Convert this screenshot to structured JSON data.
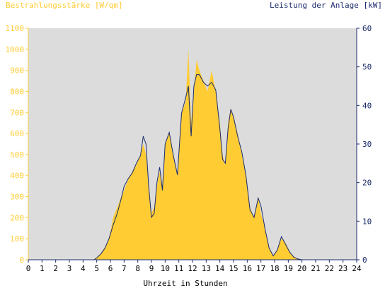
{
  "chart_data": {
    "type": "area",
    "title_left": "Bestrahlungsstärke [W/qm]",
    "title_right": "Leistung der Anlage [kW]",
    "xlabel": "Uhrzeit in Stunden",
    "x_ticks": [
      0,
      1,
      2,
      3,
      4,
      5,
      6,
      7,
      8,
      9,
      10,
      11,
      12,
      13,
      14,
      15,
      16,
      17,
      18,
      19,
      20,
      21,
      22,
      23,
      24
    ],
    "xlim": [
      0,
      24
    ],
    "ylim_left": [
      0,
      1100
    ],
    "ylim_right": [
      0,
      60
    ],
    "y_ticks_left": [
      0,
      100,
      200,
      300,
      400,
      500,
      600,
      700,
      800,
      900,
      1000,
      1100
    ],
    "y_ticks_right": [
      0,
      10,
      20,
      30,
      40,
      50,
      60
    ],
    "grid": false,
    "colors": {
      "background": "#dcdcdc",
      "irradiance": "#ffcc33",
      "power": "#1a2a6c",
      "left_axis_text": "#ffcc33",
      "right_axis_text": "#1a2a6c"
    },
    "series": [
      {
        "name": "Bestrahlungsstärke [W/qm]",
        "axis": "left",
        "kind": "area",
        "x": [
          0,
          4.8,
          5.0,
          5.3,
          5.6,
          5.9,
          6.2,
          6.5,
          6.8,
          7.0,
          7.3,
          7.6,
          7.9,
          8.2,
          8.4,
          8.6,
          8.8,
          9.0,
          9.2,
          9.4,
          9.6,
          9.8,
          10.0,
          10.3,
          10.6,
          10.9,
          11.2,
          11.5,
          11.7,
          11.9,
          12.1,
          12.3,
          12.5,
          12.8,
          13.1,
          13.4,
          13.7,
          14.0,
          14.2,
          14.4,
          14.6,
          14.8,
          15.0,
          15.3,
          15.6,
          15.9,
          16.2,
          16.5,
          16.8,
          17.0,
          17.3,
          17.6,
          17.9,
          18.2,
          18.5,
          18.8,
          19.1,
          19.4,
          19.7,
          20.0,
          20.5,
          24
        ],
        "y": [
          0,
          0,
          10,
          30,
          60,
          100,
          200,
          250,
          300,
          330,
          380,
          420,
          450,
          500,
          550,
          500,
          350,
          220,
          250,
          350,
          420,
          350,
          550,
          600,
          500,
          400,
          700,
          750,
          1000,
          650,
          800,
          950,
          900,
          850,
          800,
          900,
          800,
          650,
          500,
          450,
          650,
          720,
          680,
          600,
          500,
          400,
          250,
          200,
          300,
          220,
          150,
          60,
          20,
          50,
          100,
          80,
          40,
          15,
          5,
          0,
          0,
          0
        ]
      },
      {
        "name": "Leistung der Anlage [kW]",
        "axis": "right",
        "kind": "line",
        "x": [
          0,
          4.8,
          5.0,
          5.3,
          5.6,
          5.9,
          6.2,
          6.5,
          6.8,
          7.0,
          7.3,
          7.6,
          7.9,
          8.2,
          8.4,
          8.6,
          8.8,
          9.0,
          9.2,
          9.4,
          9.6,
          9.8,
          10.0,
          10.3,
          10.6,
          10.9,
          11.2,
          11.5,
          11.7,
          11.9,
          12.1,
          12.3,
          12.5,
          12.8,
          13.1,
          13.4,
          13.7,
          14.0,
          14.2,
          14.4,
          14.6,
          14.8,
          15.0,
          15.3,
          15.6,
          15.9,
          16.2,
          16.5,
          16.8,
          17.0,
          17.3,
          17.6,
          17.9,
          18.2,
          18.5,
          18.8,
          19.1,
          19.4,
          19.7,
          20.0,
          20.5,
          24
        ],
        "y": [
          0,
          0,
          0.5,
          1.5,
          3,
          5.5,
          9,
          12,
          16,
          19,
          21,
          22.5,
          25,
          27,
          32,
          30,
          19,
          11,
          12,
          20,
          24,
          18,
          30,
          33,
          27,
          22,
          38,
          42,
          45,
          32,
          45,
          48,
          48,
          46,
          45,
          46,
          44,
          34,
          26,
          25,
          34,
          39,
          37,
          32,
          28,
          22,
          13,
          11,
          16,
          14,
          8,
          3,
          1,
          2.5,
          6,
          4,
          2,
          0.7,
          0.2,
          0,
          0,
          0
        ]
      }
    ]
  }
}
